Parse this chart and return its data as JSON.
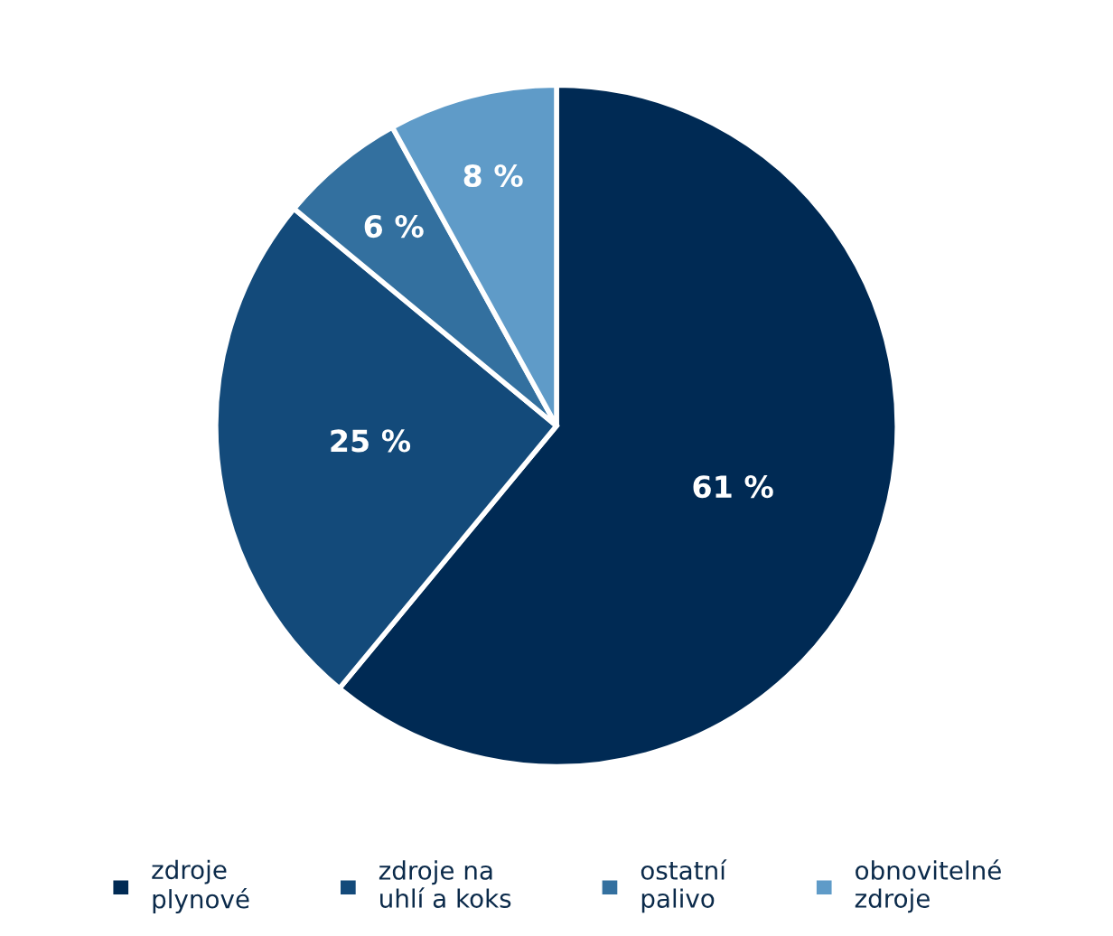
{
  "chart_data": {
    "type": "pie",
    "categories": [
      "zdroje\nplynové",
      "zdroje na\nuhlí a koks",
      "ostatní\npalivo",
      "obnovitelné\nzdroje"
    ],
    "values": [
      61,
      25,
      6,
      8
    ],
    "value_labels": [
      "61 %",
      "25 %",
      "6 %",
      "8 %"
    ],
    "colors": [
      "#002a54",
      "#134a7a",
      "#33709f",
      "#5f9bc8"
    ],
    "legend": "bottom"
  }
}
